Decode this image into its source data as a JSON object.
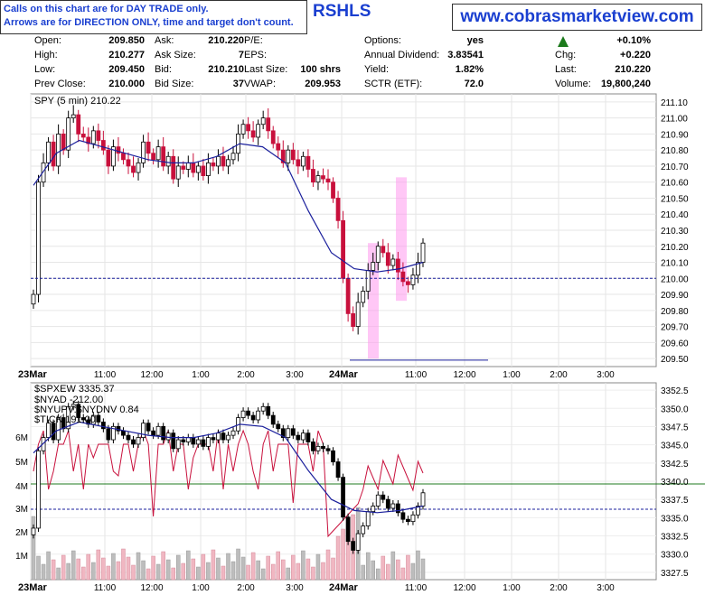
{
  "notice": {
    "line1": "Calls on this chart are for DAY TRADE only.",
    "line2": "Arrows are for DIRECTION ONLY, time and target don't count."
  },
  "ticker_fragment": "RSHLS",
  "brand": "www.cobrasmarketview.com",
  "quote": {
    "col1": [
      [
        "Open:",
        "209.850"
      ],
      [
        "High:",
        "210.277"
      ],
      [
        "Low:",
        "209.450"
      ],
      [
        "Prev Close:",
        "210.000"
      ]
    ],
    "col2": [
      [
        "Ask:",
        "210.220"
      ],
      [
        "Ask Size:",
        "7"
      ],
      [
        "Bid:",
        "210.210"
      ],
      [
        "Bid Size:",
        "37"
      ]
    ],
    "col3": [
      [
        "P/E:",
        ""
      ],
      [
        "EPS:",
        ""
      ],
      [
        "Last Size:",
        "100 shrs"
      ],
      [
        "VWAP:",
        "209.953"
      ]
    ],
    "col4": [
      [
        "Options:",
        "yes"
      ],
      [
        "Annual Dividend:",
        "3.83541"
      ],
      [
        "Yield:",
        "1.82%"
      ],
      [
        "SCTR (ETF):",
        "72.0"
      ]
    ],
    "change_pct": "+0.10%",
    "col5": [
      [
        "Chg:",
        "+0.220"
      ],
      [
        "Last:",
        "210.220"
      ],
      [
        "Volume:",
        "19,800,240"
      ]
    ]
  },
  "colors": {
    "up": "#000000",
    "down": "#c8103c",
    "ma": "#1a1f9c",
    "tick_line": "#c8103c",
    "highlight": "#ff99ee",
    "hline": "#1a1f9c",
    "green": "#1c7a1c"
  },
  "chart_data": [
    {
      "type": "candlestick",
      "legend": "SPY (5 min) 210.22",
      "ylim": [
        209.45,
        211.15
      ],
      "yticks": [
        "211.10",
        "211.00",
        "210.90",
        "210.80",
        "210.70",
        "210.60",
        "210.50",
        "210.40",
        "210.30",
        "210.20",
        "210.10",
        "210.00",
        "209.90",
        "209.80",
        "209.70",
        "209.60",
        "209.50"
      ],
      "xticks": [
        "23Mar",
        "11:00",
        "12:00",
        "1:00",
        "2:00",
        "3:00",
        "24Mar",
        "11:00",
        "12:00",
        "1:00",
        "2:00",
        "3:00"
      ],
      "closes": [
        209.9,
        210.6,
        210.72,
        210.85,
        210.7,
        210.9,
        210.8,
        211.0,
        211.02,
        210.9,
        210.88,
        210.84,
        210.92,
        210.86,
        210.8,
        210.7,
        210.82,
        210.78,
        210.74,
        210.7,
        210.66,
        210.72,
        210.85,
        210.78,
        210.74,
        210.82,
        210.7,
        210.76,
        210.62,
        210.7,
        210.68,
        210.72,
        210.66,
        210.7,
        210.64,
        210.72,
        210.7,
        210.76,
        210.7,
        210.74,
        210.78,
        210.9,
        210.96,
        210.92,
        210.88,
        210.96,
        211.0,
        210.92,
        210.84,
        210.8,
        210.72,
        210.8,
        210.74,
        210.7,
        210.76,
        210.68,
        210.6,
        210.64,
        210.62,
        210.6,
        210.5,
        210.36,
        210.0,
        209.78,
        209.7,
        209.85,
        209.92,
        210.05,
        210.1,
        210.2,
        210.16,
        210.08,
        210.12,
        210.04,
        209.98,
        209.96,
        210.02,
        210.1,
        210.22
      ],
      "ma_anchor": [
        210.58,
        210.78,
        210.86,
        210.82,
        210.78,
        210.74,
        210.72,
        210.72,
        210.76,
        210.84,
        210.82,
        210.72,
        210.42,
        210.16,
        210.06,
        210.04,
        210.06,
        210.1
      ],
      "day_low": 209.49,
      "reference_line": 210.0,
      "highlight_bands": [
        "~10:30 24Mar",
        "~11:00 24Mar"
      ]
    },
    {
      "type": "candlestick+line+bar",
      "legend": [
        "$SPXEW 3335.37",
        "$NYAD -212.00",
        "$NYUPV:$NYDNV 0.84",
        "$TICK 191.00"
      ],
      "ylim_right": [
        3326.5,
        3353.5
      ],
      "yticks_right": [
        "3352.5",
        "3350.0",
        "3347.5",
        "3345.0",
        "3342.5",
        "3340.0",
        "3337.5",
        "3335.0",
        "3332.5",
        "3330.0",
        "3327.5"
      ],
      "yticks_left": [
        "6M",
        "5M",
        "4M",
        "3M",
        "2M",
        "1M"
      ],
      "xticks": [
        "23Mar",
        "11:00",
        "12:00",
        "1:00",
        "2:00",
        "3:00",
        "24Mar",
        "11:00",
        "12:00",
        "1:00",
        "2:00",
        "3:00"
      ],
      "green_hline_left": "4M",
      "reference_line": 3336.8
    }
  ]
}
